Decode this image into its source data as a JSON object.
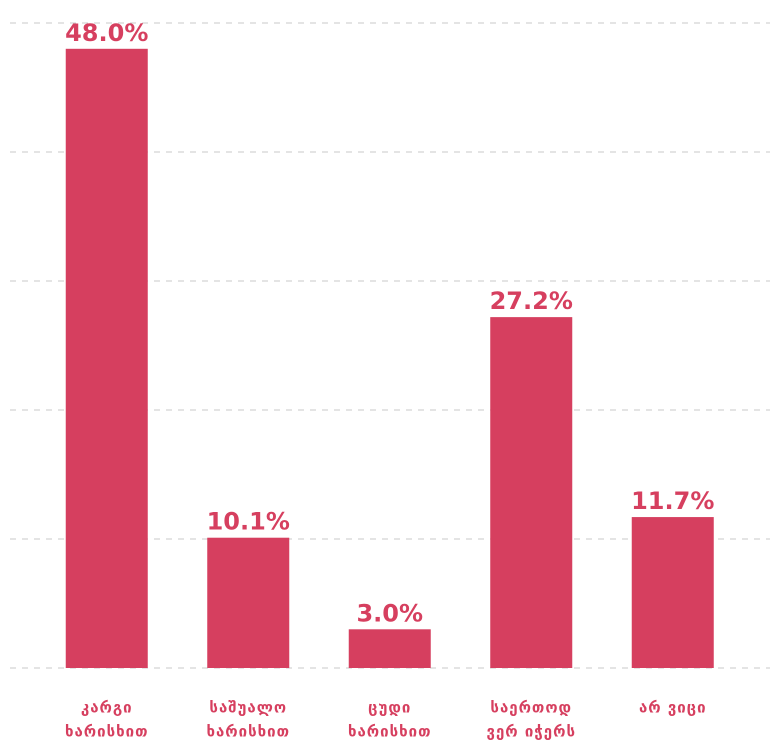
{
  "chart_data": {
    "type": "bar",
    "categories": [
      [
        "კარგი",
        "ხარისხით"
      ],
      [
        "საშუალო",
        "ხარისხით"
      ],
      [
        "ცუდი",
        "ხარისხით"
      ],
      [
        "საერთოდ",
        "ვერ იჭერს"
      ],
      [
        "არ ვიცი"
      ]
    ],
    "values": [
      48.0,
      10.1,
      3.0,
      27.2,
      11.7
    ],
    "value_labels": [
      "48.0%",
      "10.1%",
      "3.0%",
      "27.2%",
      "11.7%"
    ],
    "color": "#d63f5f",
    "ylim": [
      0,
      50
    ],
    "yticks": [
      0,
      10,
      20,
      30,
      40,
      50
    ],
    "grid": true
  }
}
